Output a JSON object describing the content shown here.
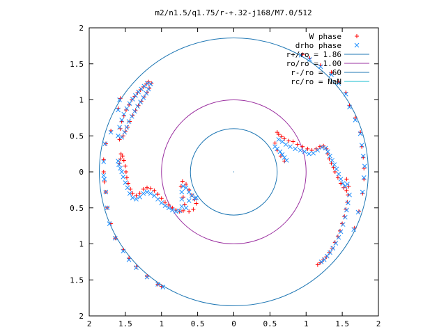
{
  "chart_data": {
    "type": "scatter",
    "title": "m2/n1.5/q1.75/r-+.32-j168/M7.0/512",
    "xlim": [
      -2,
      2
    ],
    "ylim": [
      -2,
      2
    ],
    "x_ticks": [
      -2,
      -1.5,
      -1,
      -0.5,
      0,
      0.5,
      1,
      1.5,
      2
    ],
    "y_ticks": [
      -2,
      -1.5,
      -1,
      -0.5,
      0,
      0.5,
      1,
      1.5,
      2
    ],
    "x_tick_labels": [
      "2",
      "1.5",
      "1",
      "0.5",
      "0",
      "0.5",
      "1",
      "1.5",
      "2"
    ],
    "y_tick_labels": [
      "2",
      "1.5",
      "1",
      "0.5",
      "0",
      "0.5",
      "1",
      "1.5",
      "2"
    ],
    "grid": false,
    "legend_position": "top-right",
    "series": [
      {
        "name": "W phase",
        "marker": "plus",
        "color": "#ff0000",
        "points": [
          [
            -1.58,
            0.12
          ],
          [
            -1.57,
            0.18
          ],
          [
            -1.56,
            0.25
          ],
          [
            -1.54,
            0.22
          ],
          [
            -1.52,
            0.16
          ],
          [
            -1.5,
            0.08
          ],
          [
            -1.49,
            0.0
          ],
          [
            -1.48,
            -0.08
          ],
          [
            -1.46,
            -0.16
          ],
          [
            -1.43,
            -0.24
          ],
          [
            -1.4,
            -0.3
          ],
          [
            -1.35,
            -0.33
          ],
          [
            -1.3,
            -0.3
          ],
          [
            -1.25,
            -0.24
          ],
          [
            -1.2,
            -0.22
          ],
          [
            -1.15,
            -0.23
          ],
          [
            -1.1,
            -0.26
          ],
          [
            -1.05,
            -0.31
          ],
          [
            -1.0,
            -0.37
          ],
          [
            -0.95,
            -0.42
          ],
          [
            -0.9,
            -0.46
          ],
          [
            -0.85,
            -0.5
          ],
          [
            -0.8,
            -0.53
          ],
          [
            -0.75,
            -0.55
          ],
          [
            -0.7,
            -0.54
          ],
          [
            -0.68,
            -0.45
          ],
          [
            -0.7,
            -0.35
          ],
          [
            -0.73,
            -0.2
          ],
          [
            -0.71,
            -0.13
          ],
          [
            -0.66,
            -0.17
          ],
          [
            -0.62,
            -0.25
          ],
          [
            -0.58,
            -0.32
          ],
          [
            -0.54,
            -0.38
          ],
          [
            -0.52,
            -0.44
          ],
          [
            -0.56,
            -0.52
          ],
          [
            -0.62,
            -0.55
          ],
          [
            -1.58,
            0.45
          ],
          [
            -1.57,
            0.6
          ],
          [
            -1.55,
            0.7
          ],
          [
            -1.52,
            0.78
          ],
          [
            -1.49,
            0.86
          ],
          [
            -1.45,
            0.93
          ],
          [
            -1.41,
            1.0
          ],
          [
            -1.37,
            1.05
          ],
          [
            -1.33,
            1.1
          ],
          [
            -1.29,
            1.14
          ],
          [
            -1.25,
            1.18
          ],
          [
            -1.21,
            1.22
          ],
          [
            -1.18,
            1.25
          ],
          [
            -1.53,
            0.5
          ],
          [
            -1.5,
            0.56
          ],
          [
            -1.47,
            0.62
          ],
          [
            -1.44,
            0.7
          ],
          [
            -1.4,
            0.78
          ],
          [
            -1.36,
            0.85
          ],
          [
            -1.32,
            0.92
          ],
          [
            -1.28,
            0.98
          ],
          [
            -1.24,
            1.04
          ],
          [
            -1.2,
            1.1
          ],
          [
            -1.17,
            1.16
          ],
          [
            -1.14,
            1.23
          ],
          [
            -1.8,
            0.0
          ],
          [
            -1.79,
            -0.14
          ],
          [
            -1.8,
            0.17
          ],
          [
            -1.77,
            0.39
          ],
          [
            -1.77,
            -0.28
          ],
          [
            -1.75,
            -0.5
          ],
          [
            -1.7,
            -0.72
          ],
          [
            -1.7,
            0.57
          ],
          [
            -1.64,
            -0.92
          ],
          [
            -1.6,
            0.88
          ],
          [
            -1.57,
            1.02
          ],
          [
            -1.53,
            -1.08
          ],
          [
            -1.45,
            -1.2
          ],
          [
            -1.35,
            -1.32
          ],
          [
            -1.2,
            -1.45
          ],
          [
            -1.05,
            -1.56
          ],
          [
            -1.0,
            -1.59
          ],
          [
            0.6,
            0.55
          ],
          [
            0.62,
            0.52
          ],
          [
            0.66,
            0.49
          ],
          [
            0.7,
            0.46
          ],
          [
            0.76,
            0.43
          ],
          [
            0.82,
            0.42
          ],
          [
            0.88,
            0.38
          ],
          [
            0.95,
            0.35
          ],
          [
            1.02,
            0.32
          ],
          [
            1.08,
            0.3
          ],
          [
            1.14,
            0.32
          ],
          [
            1.19,
            0.35
          ],
          [
            1.24,
            0.36
          ],
          [
            1.28,
            0.32
          ],
          [
            1.3,
            0.25
          ],
          [
            1.32,
            0.18
          ],
          [
            1.35,
            0.12
          ],
          [
            1.38,
            0.06
          ],
          [
            1.4,
            0.0
          ],
          [
            1.44,
            -0.08
          ],
          [
            1.48,
            -0.16
          ],
          [
            1.52,
            -0.22
          ],
          [
            1.56,
            -0.26
          ],
          [
            1.59,
            -0.2
          ],
          [
            1.56,
            -0.1
          ],
          [
            0.57,
            0.4
          ],
          [
            0.6,
            0.3
          ],
          [
            0.65,
            0.22
          ],
          [
            0.7,
            0.15
          ],
          [
            1.58,
            -0.32
          ],
          [
            1.57,
            -0.42
          ],
          [
            1.55,
            -0.52
          ],
          [
            1.53,
            -0.62
          ],
          [
            1.5,
            -0.72
          ],
          [
            1.47,
            -0.82
          ],
          [
            1.44,
            -0.9
          ],
          [
            1.4,
            -0.98
          ],
          [
            1.36,
            -1.06
          ],
          [
            1.32,
            -1.12
          ],
          [
            1.28,
            -1.18
          ],
          [
            1.24,
            -1.22
          ],
          [
            1.2,
            -1.26
          ],
          [
            1.16,
            -1.29
          ],
          [
            1.8,
            0.05
          ],
          [
            1.8,
            -0.1
          ],
          [
            1.79,
            0.2
          ],
          [
            1.78,
            -0.3
          ],
          [
            1.77,
            0.35
          ],
          [
            1.75,
            0.55
          ],
          [
            1.73,
            -0.55
          ],
          [
            1.68,
            0.75
          ],
          [
            1.67,
            -0.78
          ],
          [
            1.6,
            0.92
          ],
          [
            1.55,
            1.1
          ],
          [
            1.45,
            1.25
          ],
          [
            1.35,
            1.38
          ],
          [
            1.2,
            1.48
          ],
          [
            1.05,
            1.58
          ],
          [
            0.95,
            1.63
          ]
        ]
      },
      {
        "name": "drho phase",
        "marker": "cross",
        "color": "#1e90ff",
        "points": [
          [
            -1.6,
            0.15
          ],
          [
            -1.59,
            0.1
          ],
          [
            -1.57,
            0.05
          ],
          [
            -1.55,
            0.0
          ],
          [
            -1.53,
            -0.07
          ],
          [
            -1.5,
            -0.15
          ],
          [
            -1.47,
            -0.22
          ],
          [
            -1.44,
            -0.3
          ],
          [
            -1.4,
            -0.36
          ],
          [
            -1.35,
            -0.38
          ],
          [
            -1.3,
            -0.35
          ],
          [
            -1.25,
            -0.3
          ],
          [
            -1.2,
            -0.28
          ],
          [
            -1.15,
            -0.3
          ],
          [
            -1.1,
            -0.33
          ],
          [
            -1.05,
            -0.38
          ],
          [
            -1.0,
            -0.43
          ],
          [
            -0.95,
            -0.47
          ],
          [
            -0.9,
            -0.5
          ],
          [
            -0.85,
            -0.53
          ],
          [
            -0.8,
            -0.55
          ],
          [
            -0.75,
            -0.54
          ],
          [
            -0.72,
            -0.48
          ],
          [
            -0.72,
            -0.38
          ],
          [
            -0.72,
            -0.28
          ],
          [
            -0.7,
            -0.2
          ],
          [
            -0.66,
            -0.22
          ],
          [
            -0.62,
            -0.28
          ],
          [
            -0.58,
            -0.33
          ],
          [
            -0.54,
            -0.37
          ],
          [
            -0.52,
            -0.36
          ],
          [
            -0.62,
            -0.4
          ],
          [
            -0.66,
            -0.5
          ],
          [
            -1.6,
            0.5
          ],
          [
            -1.58,
            0.62
          ],
          [
            -1.55,
            0.72
          ],
          [
            -1.52,
            0.8
          ],
          [
            -1.48,
            0.88
          ],
          [
            -1.44,
            0.95
          ],
          [
            -1.4,
            1.01
          ],
          [
            -1.36,
            1.06
          ],
          [
            -1.32,
            1.11
          ],
          [
            -1.28,
            1.15
          ],
          [
            -1.24,
            1.19
          ],
          [
            -1.2,
            1.23
          ],
          [
            -1.55,
            0.48
          ],
          [
            -1.51,
            0.55
          ],
          [
            -1.48,
            0.62
          ],
          [
            -1.45,
            0.7
          ],
          [
            -1.41,
            0.77
          ],
          [
            -1.37,
            0.84
          ],
          [
            -1.33,
            0.91
          ],
          [
            -1.29,
            0.97
          ],
          [
            -1.25,
            1.03
          ],
          [
            -1.21,
            1.09
          ],
          [
            -1.18,
            1.15
          ],
          [
            -1.15,
            1.22
          ],
          [
            -1.8,
            -0.05
          ],
          [
            -1.79,
            -0.1
          ],
          [
            -1.8,
            0.14
          ],
          [
            -1.78,
            0.39
          ],
          [
            -1.77,
            -0.28
          ],
          [
            -1.75,
            -0.5
          ],
          [
            -1.72,
            -0.72
          ],
          [
            -1.7,
            0.55
          ],
          [
            -1.64,
            -0.92
          ],
          [
            -1.6,
            0.86
          ],
          [
            -1.58,
            1.0
          ],
          [
            -1.53,
            -1.1
          ],
          [
            -1.45,
            -1.22
          ],
          [
            -1.35,
            -1.33
          ],
          [
            -1.2,
            -1.46
          ],
          [
            -1.05,
            -1.56
          ],
          [
            -0.98,
            -1.6
          ],
          [
            0.57,
            0.35
          ],
          [
            0.6,
            0.32
          ],
          [
            0.64,
            0.28
          ],
          [
            0.67,
            0.24
          ],
          [
            0.7,
            0.2
          ],
          [
            0.73,
            0.16
          ],
          [
            0.62,
            0.45
          ],
          [
            0.67,
            0.42
          ],
          [
            0.72,
            0.38
          ],
          [
            0.78,
            0.35
          ],
          [
            0.85,
            0.32
          ],
          [
            0.92,
            0.3
          ],
          [
            0.98,
            0.28
          ],
          [
            1.04,
            0.25
          ],
          [
            1.1,
            0.26
          ],
          [
            1.16,
            0.3
          ],
          [
            1.22,
            0.34
          ],
          [
            1.27,
            0.33
          ],
          [
            1.3,
            0.28
          ],
          [
            1.33,
            0.22
          ],
          [
            1.36,
            0.16
          ],
          [
            1.39,
            0.1
          ],
          [
            1.42,
            0.04
          ],
          [
            1.45,
            -0.03
          ],
          [
            1.48,
            -0.1
          ],
          [
            1.51,
            -0.16
          ],
          [
            1.54,
            -0.2
          ],
          [
            1.57,
            -0.17
          ],
          [
            1.6,
            -0.32
          ],
          [
            1.58,
            -0.43
          ],
          [
            1.56,
            -0.53
          ],
          [
            1.54,
            -0.63
          ],
          [
            1.51,
            -0.73
          ],
          [
            1.48,
            -0.83
          ],
          [
            1.45,
            -0.91
          ],
          [
            1.41,
            -0.99
          ],
          [
            1.37,
            -1.06
          ],
          [
            1.33,
            -1.12
          ],
          [
            1.29,
            -1.17
          ],
          [
            1.25,
            -1.22
          ],
          [
            1.21,
            -1.25
          ],
          [
            1.81,
            0.08
          ],
          [
            1.8,
            -0.08
          ],
          [
            1.79,
            0.22
          ],
          [
            1.78,
            -0.28
          ],
          [
            1.77,
            0.37
          ],
          [
            1.75,
            0.53
          ],
          [
            1.72,
            -0.56
          ],
          [
            1.68,
            0.72
          ],
          [
            1.66,
            -0.8
          ],
          [
            1.6,
            0.9
          ],
          [
            1.55,
            1.08
          ],
          [
            1.45,
            1.23
          ],
          [
            1.35,
            1.35
          ],
          [
            1.2,
            1.46
          ],
          [
            1.05,
            1.56
          ],
          [
            0.93,
            1.62
          ]
        ]
      }
    ],
    "circles": [
      {
        "name": "r+/ro = 1.86",
        "radius": 1.86,
        "color": "#1f77b4"
      },
      {
        "name": "ro/ro = 1.00",
        "radius": 1.0,
        "color": "#9b30a0"
      },
      {
        "name": "r-/ro = .60",
        "radius": 0.6,
        "color": "#1f77b4"
      },
      {
        "name": "rc/ro = NaN",
        "radius": null,
        "color": "#17becf"
      }
    ]
  }
}
